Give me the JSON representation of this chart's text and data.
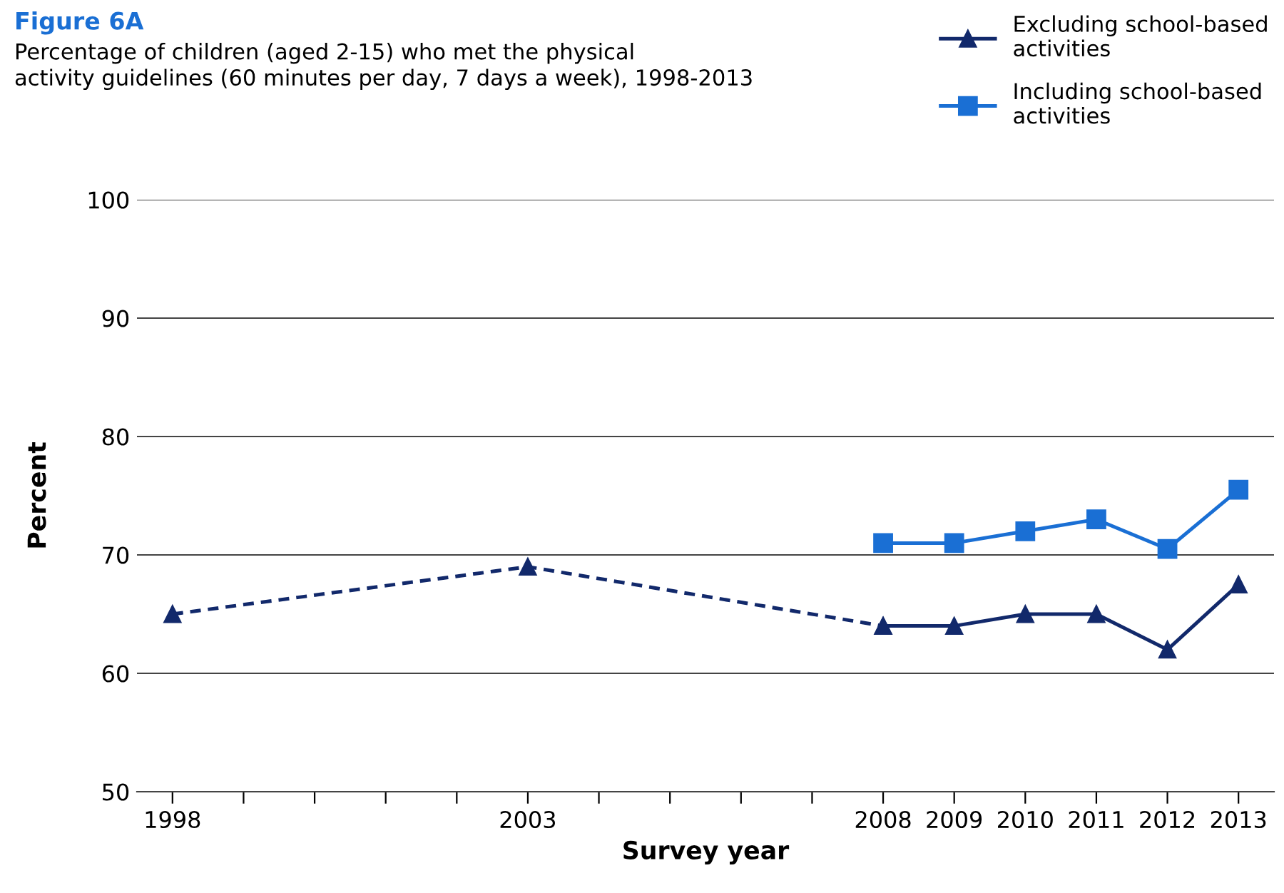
{
  "chart_data": {
    "type": "line",
    "title": "Figure 6A",
    "subtitle": "Percentage of children (aged 2-15) who met the physical activity guidelines (60 minutes per day, 7 days a week), 1998-2013",
    "xlabel": "Survey year",
    "ylabel": "Percent",
    "ylim": [
      50,
      100
    ],
    "yticks": [
      50,
      60,
      70,
      80,
      90,
      100
    ],
    "xlim": [
      1997.5,
      2013.5
    ],
    "xticks": [
      1998,
      {
        "value": 1999,
        "label": null
      },
      {
        "value": 2000,
        "label": null
      },
      {
        "value": 2001,
        "label": null
      },
      {
        "value": 2002,
        "label": null
      },
      2003,
      {
        "value": 2004,
        "label": null
      },
      {
        "value": 2005,
        "label": null
      },
      {
        "value": 2006,
        "label": null
      },
      {
        "value": 2007,
        "label": null
      },
      2008,
      2009,
      2010,
      2011,
      2012,
      2013
    ],
    "grid": "y",
    "legend": "top right",
    "series": [
      {
        "color": "#12296b",
        "x": [
          1998,
          2003,
          2008
        ],
        "values": [
          65,
          69,
          64
        ],
        "marker": "triangle",
        "line_style": "dashed"
      },
      {
        "name": "Excluding school-based activities",
        "color": "#12296b",
        "x": [
          2008,
          2009,
          2010,
          2011,
          2012,
          2013
        ],
        "values": [
          64,
          64,
          65,
          65,
          62,
          67.5
        ],
        "marker": "triangle",
        "line_style": "solid"
      },
      {
        "name": "Including school-based activities",
        "color": "#1a6fd4",
        "x": [
          2008,
          2009,
          2010,
          2011,
          2012,
          2013
        ],
        "values": [
          71,
          71,
          72,
          73,
          70.5,
          75.5
        ],
        "marker": "square",
        "line_style": "solid"
      }
    ]
  }
}
